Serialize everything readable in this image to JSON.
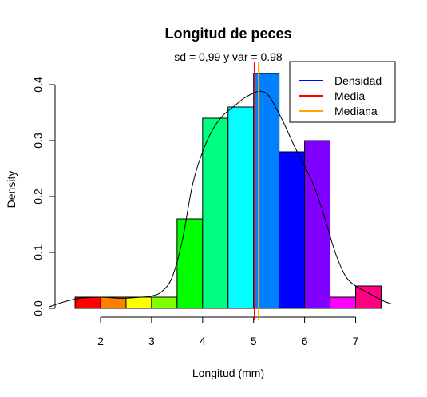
{
  "chart_data": {
    "type": "bar",
    "title": "Longitud de peces",
    "subtitle": "sd = 0,99 y var = 0.98",
    "xlabel": "Longitud (mm)",
    "ylabel": "Density",
    "xlim": [
      1.5,
      7.5
    ],
    "ylim": [
      0,
      0.42
    ],
    "x_ticks": [
      2,
      3,
      4,
      5,
      6,
      7
    ],
    "y_ticks": [
      0.0,
      0.1,
      0.2,
      0.3,
      0.4
    ],
    "y_tick_labels": [
      "0.0",
      "0.1",
      "0.2",
      "0.3",
      "0.4"
    ],
    "bins": [
      {
        "x0": 1.5,
        "x1": 2.0,
        "density": 0.02,
        "color": "#FF0000"
      },
      {
        "x0": 2.0,
        "x1": 2.5,
        "density": 0.02,
        "color": "#FF8000"
      },
      {
        "x0": 2.5,
        "x1": 3.0,
        "density": 0.02,
        "color": "#FFFF00"
      },
      {
        "x0": 3.0,
        "x1": 3.5,
        "density": 0.02,
        "color": "#80FF00"
      },
      {
        "x0": 3.5,
        "x1": 4.0,
        "density": 0.16,
        "color": "#00FF00"
      },
      {
        "x0": 4.0,
        "x1": 4.5,
        "density": 0.34,
        "color": "#00FF80"
      },
      {
        "x0": 4.5,
        "x1": 5.0,
        "density": 0.36,
        "color": "#00FFFF"
      },
      {
        "x0": 5.0,
        "x1": 5.5,
        "density": 0.42,
        "color": "#0080FF"
      },
      {
        "x0": 5.5,
        "x1": 6.0,
        "density": 0.28,
        "color": "#0000FF"
      },
      {
        "x0": 6.0,
        "x1": 6.5,
        "density": 0.3,
        "color": "#8000FF"
      },
      {
        "x0": 6.5,
        "x1": 7.0,
        "density": 0.02,
        "color": "#FF00FF"
      },
      {
        "x0": 7.0,
        "x1": 7.5,
        "density": 0.04,
        "color": "#FF0080"
      }
    ],
    "density_curve": {
      "x": [
        1.0,
        1.3,
        1.6,
        2.0,
        2.4,
        2.8,
        3.0,
        3.2,
        3.4,
        3.6,
        3.8,
        4.0,
        4.2,
        4.4,
        4.6,
        4.8,
        5.0,
        5.1,
        5.2,
        5.3,
        5.4,
        5.6,
        5.8,
        6.0,
        6.2,
        6.4,
        6.6,
        6.8,
        7.0,
        7.2,
        7.5,
        7.7
      ],
      "y": [
        0.003,
        0.012,
        0.018,
        0.02,
        0.018,
        0.02,
        0.022,
        0.03,
        0.055,
        0.12,
        0.22,
        0.28,
        0.32,
        0.345,
        0.36,
        0.375,
        0.385,
        0.388,
        0.387,
        0.38,
        0.365,
        0.33,
        0.29,
        0.255,
        0.215,
        0.16,
        0.1,
        0.058,
        0.04,
        0.03,
        0.015,
        0.008
      ]
    },
    "mean": 5.02,
    "median": 5.1,
    "legend": {
      "position": "top-right",
      "entries": [
        {
          "label": "Densidad",
          "color": "#0000FF"
        },
        {
          "label": "Media",
          "color": "#FF0000"
        },
        {
          "label": "Mediana",
          "color": "#FFA500"
        }
      ]
    },
    "grid": false
  }
}
